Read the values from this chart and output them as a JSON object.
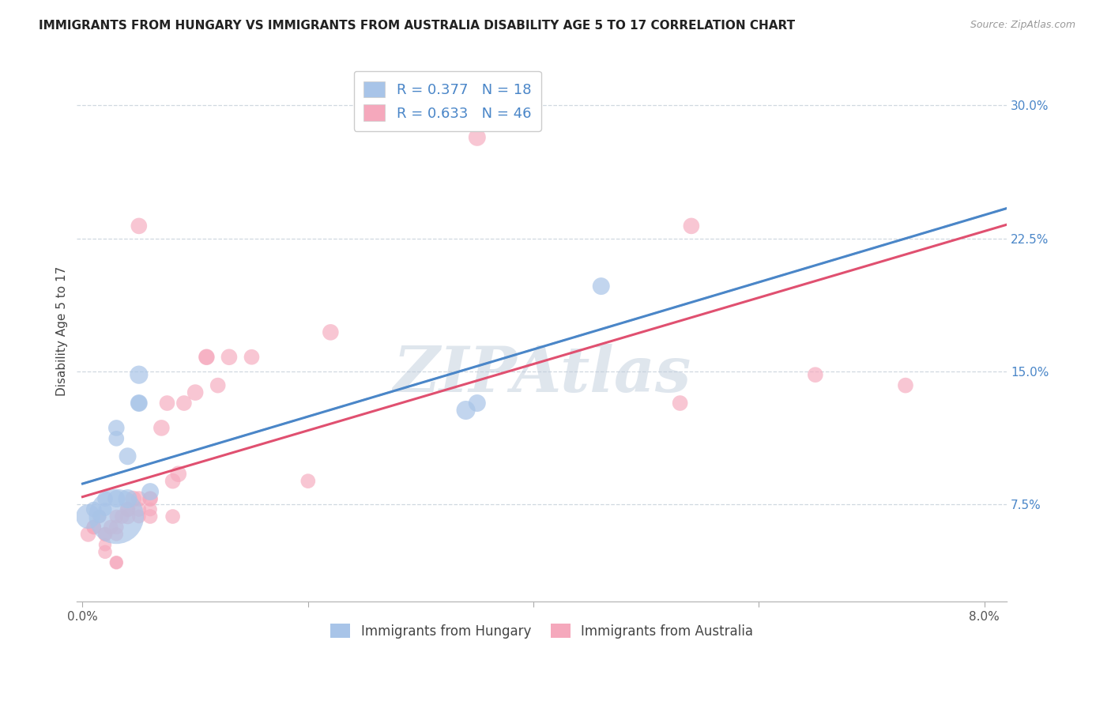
{
  "title": "IMMIGRANTS FROM HUNGARY VS IMMIGRANTS FROM AUSTRALIA DISABILITY AGE 5 TO 17 CORRELATION CHART",
  "source": "Source: ZipAtlas.com",
  "ylabel": "Disability Age 5 to 17",
  "xlim": [
    -0.0005,
    0.082
  ],
  "ylim": [
    0.02,
    0.325
  ],
  "xticks": [
    0.0,
    0.02,
    0.04,
    0.06,
    0.08
  ],
  "ytick_values": [
    0.075,
    0.15,
    0.225,
    0.3
  ],
  "ytick_labels": [
    "7.5%",
    "15.0%",
    "22.5%",
    "30.0%"
  ],
  "hungary_R": 0.377,
  "hungary_N": 18,
  "australia_R": 0.633,
  "australia_N": 46,
  "hungary_color": "#a8c4e8",
  "australia_color": "#f5a8bc",
  "hungary_line_color": "#4a86c8",
  "australia_line_color": "#e05070",
  "dashed_line_color": "#aabbcc",
  "hungary_x": [
    0.0005,
    0.001,
    0.0015,
    0.002,
    0.002,
    0.003,
    0.003,
    0.003,
    0.003,
    0.004,
    0.004,
    0.005,
    0.005,
    0.005,
    0.006,
    0.034,
    0.035,
    0.046
  ],
  "hungary_y": [
    0.068,
    0.072,
    0.068,
    0.072,
    0.078,
    0.068,
    0.078,
    0.112,
    0.118,
    0.078,
    0.102,
    0.132,
    0.132,
    0.148,
    0.082,
    0.128,
    0.132,
    0.198
  ],
  "hungary_size": [
    500,
    200,
    150,
    150,
    200,
    2500,
    250,
    200,
    220,
    300,
    250,
    250,
    220,
    280,
    250,
    300,
    250,
    250
  ],
  "australia_x": [
    0.0005,
    0.001,
    0.001,
    0.0015,
    0.002,
    0.002,
    0.002,
    0.002,
    0.0025,
    0.003,
    0.003,
    0.003,
    0.003,
    0.003,
    0.0035,
    0.004,
    0.004,
    0.004,
    0.0045,
    0.005,
    0.005,
    0.005,
    0.005,
    0.006,
    0.006,
    0.006,
    0.006,
    0.007,
    0.0075,
    0.008,
    0.008,
    0.0085,
    0.009,
    0.01,
    0.011,
    0.011,
    0.012,
    0.013,
    0.015,
    0.02,
    0.022,
    0.035,
    0.053,
    0.054,
    0.065,
    0.073
  ],
  "australia_y": [
    0.058,
    0.062,
    0.062,
    0.068,
    0.048,
    0.052,
    0.058,
    0.058,
    0.062,
    0.042,
    0.042,
    0.058,
    0.062,
    0.068,
    0.068,
    0.068,
    0.072,
    0.072,
    0.078,
    0.068,
    0.072,
    0.078,
    0.232,
    0.068,
    0.072,
    0.078,
    0.078,
    0.118,
    0.132,
    0.068,
    0.088,
    0.092,
    0.132,
    0.138,
    0.158,
    0.158,
    0.142,
    0.158,
    0.158,
    0.088,
    0.172,
    0.282,
    0.132,
    0.232,
    0.148,
    0.142
  ],
  "australia_size": [
    200,
    180,
    180,
    160,
    160,
    140,
    180,
    160,
    180,
    160,
    140,
    160,
    180,
    160,
    180,
    200,
    180,
    200,
    220,
    160,
    180,
    200,
    220,
    180,
    160,
    200,
    180,
    220,
    200,
    180,
    200,
    220,
    200,
    220,
    200,
    220,
    200,
    220,
    200,
    180,
    220,
    250,
    200,
    220,
    200,
    200
  ],
  "background_color": "#ffffff",
  "grid_color": "#d0d8e0",
  "watermark_text": "ZIPAtlas",
  "watermark_color": "#c0cedd",
  "title_fontsize": 11,
  "axis_label_fontsize": 11,
  "tick_fontsize": 11,
  "legend_fontsize": 13,
  "legend_text_color": "#4a86c8",
  "right_tick_color": "#4a86c8"
}
